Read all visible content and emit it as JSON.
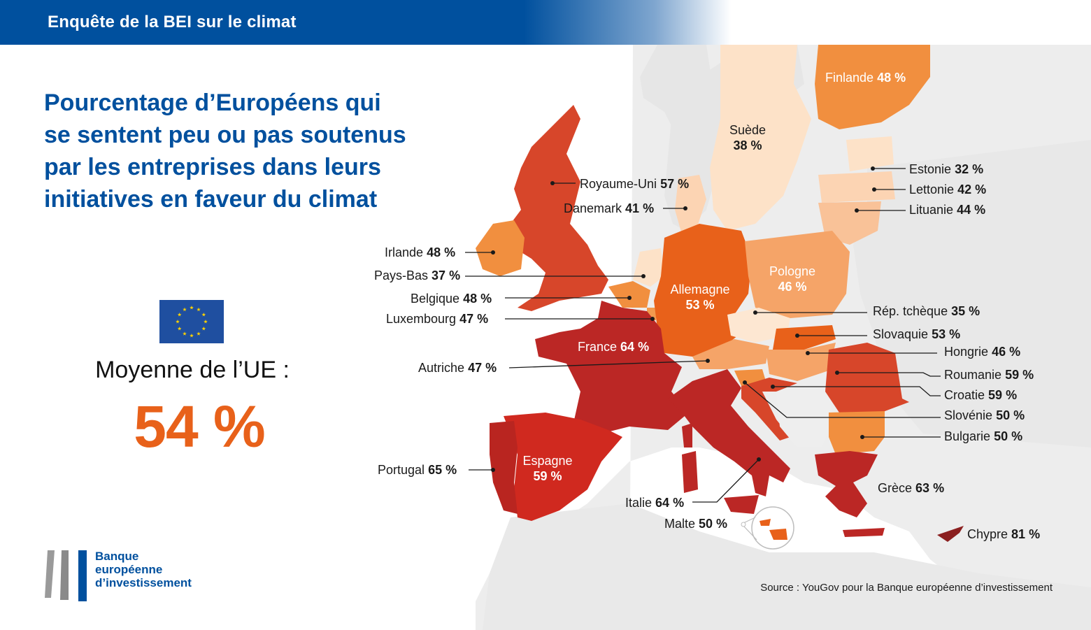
{
  "header": {
    "title": "Enquête de la BEI sur le climat"
  },
  "main_title": {
    "lines": [
      "Pourcentage d’Européens qui",
      "se sentent peu ou pas soutenus",
      "par les entreprises dans leurs",
      "initiatives en faveur du climat"
    ]
  },
  "eu_average": {
    "label": "Moyenne de l’UE :",
    "value": "54 %"
  },
  "logo": {
    "lines": [
      "Banque",
      "européenne",
      "d’investissement"
    ]
  },
  "source": "Source : YouGov pour la Banque européenne d’investissement",
  "colors": {
    "header_blue": "#00509e",
    "accent_orange": "#e8611a",
    "flag_blue": "#1f4fa0",
    "flag_stars": "#ffd200",
    "land_grey": "#eeeeee"
  },
  "countries": {
    "finlande": {
      "name": "Finlande",
      "value": "48 %"
    },
    "suede": {
      "name": "Suède",
      "value": "38 %"
    },
    "estonie": {
      "name": "Estonie",
      "value": "32 %"
    },
    "lettonie": {
      "name": "Lettonie",
      "value": "42 %"
    },
    "lituanie": {
      "name": "Lituanie",
      "value": "44 %"
    },
    "royaume_uni": {
      "name": "Royaume-Uni",
      "value": "57 %"
    },
    "danemark": {
      "name": "Danemark",
      "value": "41 %"
    },
    "irlande": {
      "name": "Irlande",
      "value": "48 %"
    },
    "pays_bas": {
      "name": "Pays-Bas",
      "value": "37 %"
    },
    "belgique": {
      "name": "Belgique",
      "value": "48 %"
    },
    "luxembourg": {
      "name": "Luxembourg",
      "value": "47 %"
    },
    "allemagne": {
      "name": "Allemagne",
      "value": "53 %"
    },
    "pologne": {
      "name": "Pologne",
      "value": "46 %"
    },
    "rep_tcheque": {
      "name": "Rép. tchèque",
      "value": "35 %"
    },
    "slovaquie": {
      "name": "Slovaquie",
      "value": "53 %"
    },
    "hongrie": {
      "name": "Hongrie",
      "value": "46 %"
    },
    "autriche": {
      "name": "Autriche",
      "value": "47 %"
    },
    "france": {
      "name": "France",
      "value": "64 %"
    },
    "roumanie": {
      "name": "Roumanie",
      "value": "59 %"
    },
    "croatie": {
      "name": "Croatie",
      "value": "59 %"
    },
    "slovenie": {
      "name": "Slovénie",
      "value": "50 %"
    },
    "bulgarie": {
      "name": "Bulgarie",
      "value": "50 %"
    },
    "portugal": {
      "name": "Portugal",
      "value": "65 %"
    },
    "espagne": {
      "name": "Espagne",
      "value": "59 %"
    },
    "italie": {
      "name": "Italie",
      "value": "64 %"
    },
    "malte": {
      "name": "Malte",
      "value": "50 %"
    },
    "grece": {
      "name": "Grèce",
      "value": "63 %"
    },
    "chypre": {
      "name": "Chypre",
      "value": "81 %"
    }
  }
}
